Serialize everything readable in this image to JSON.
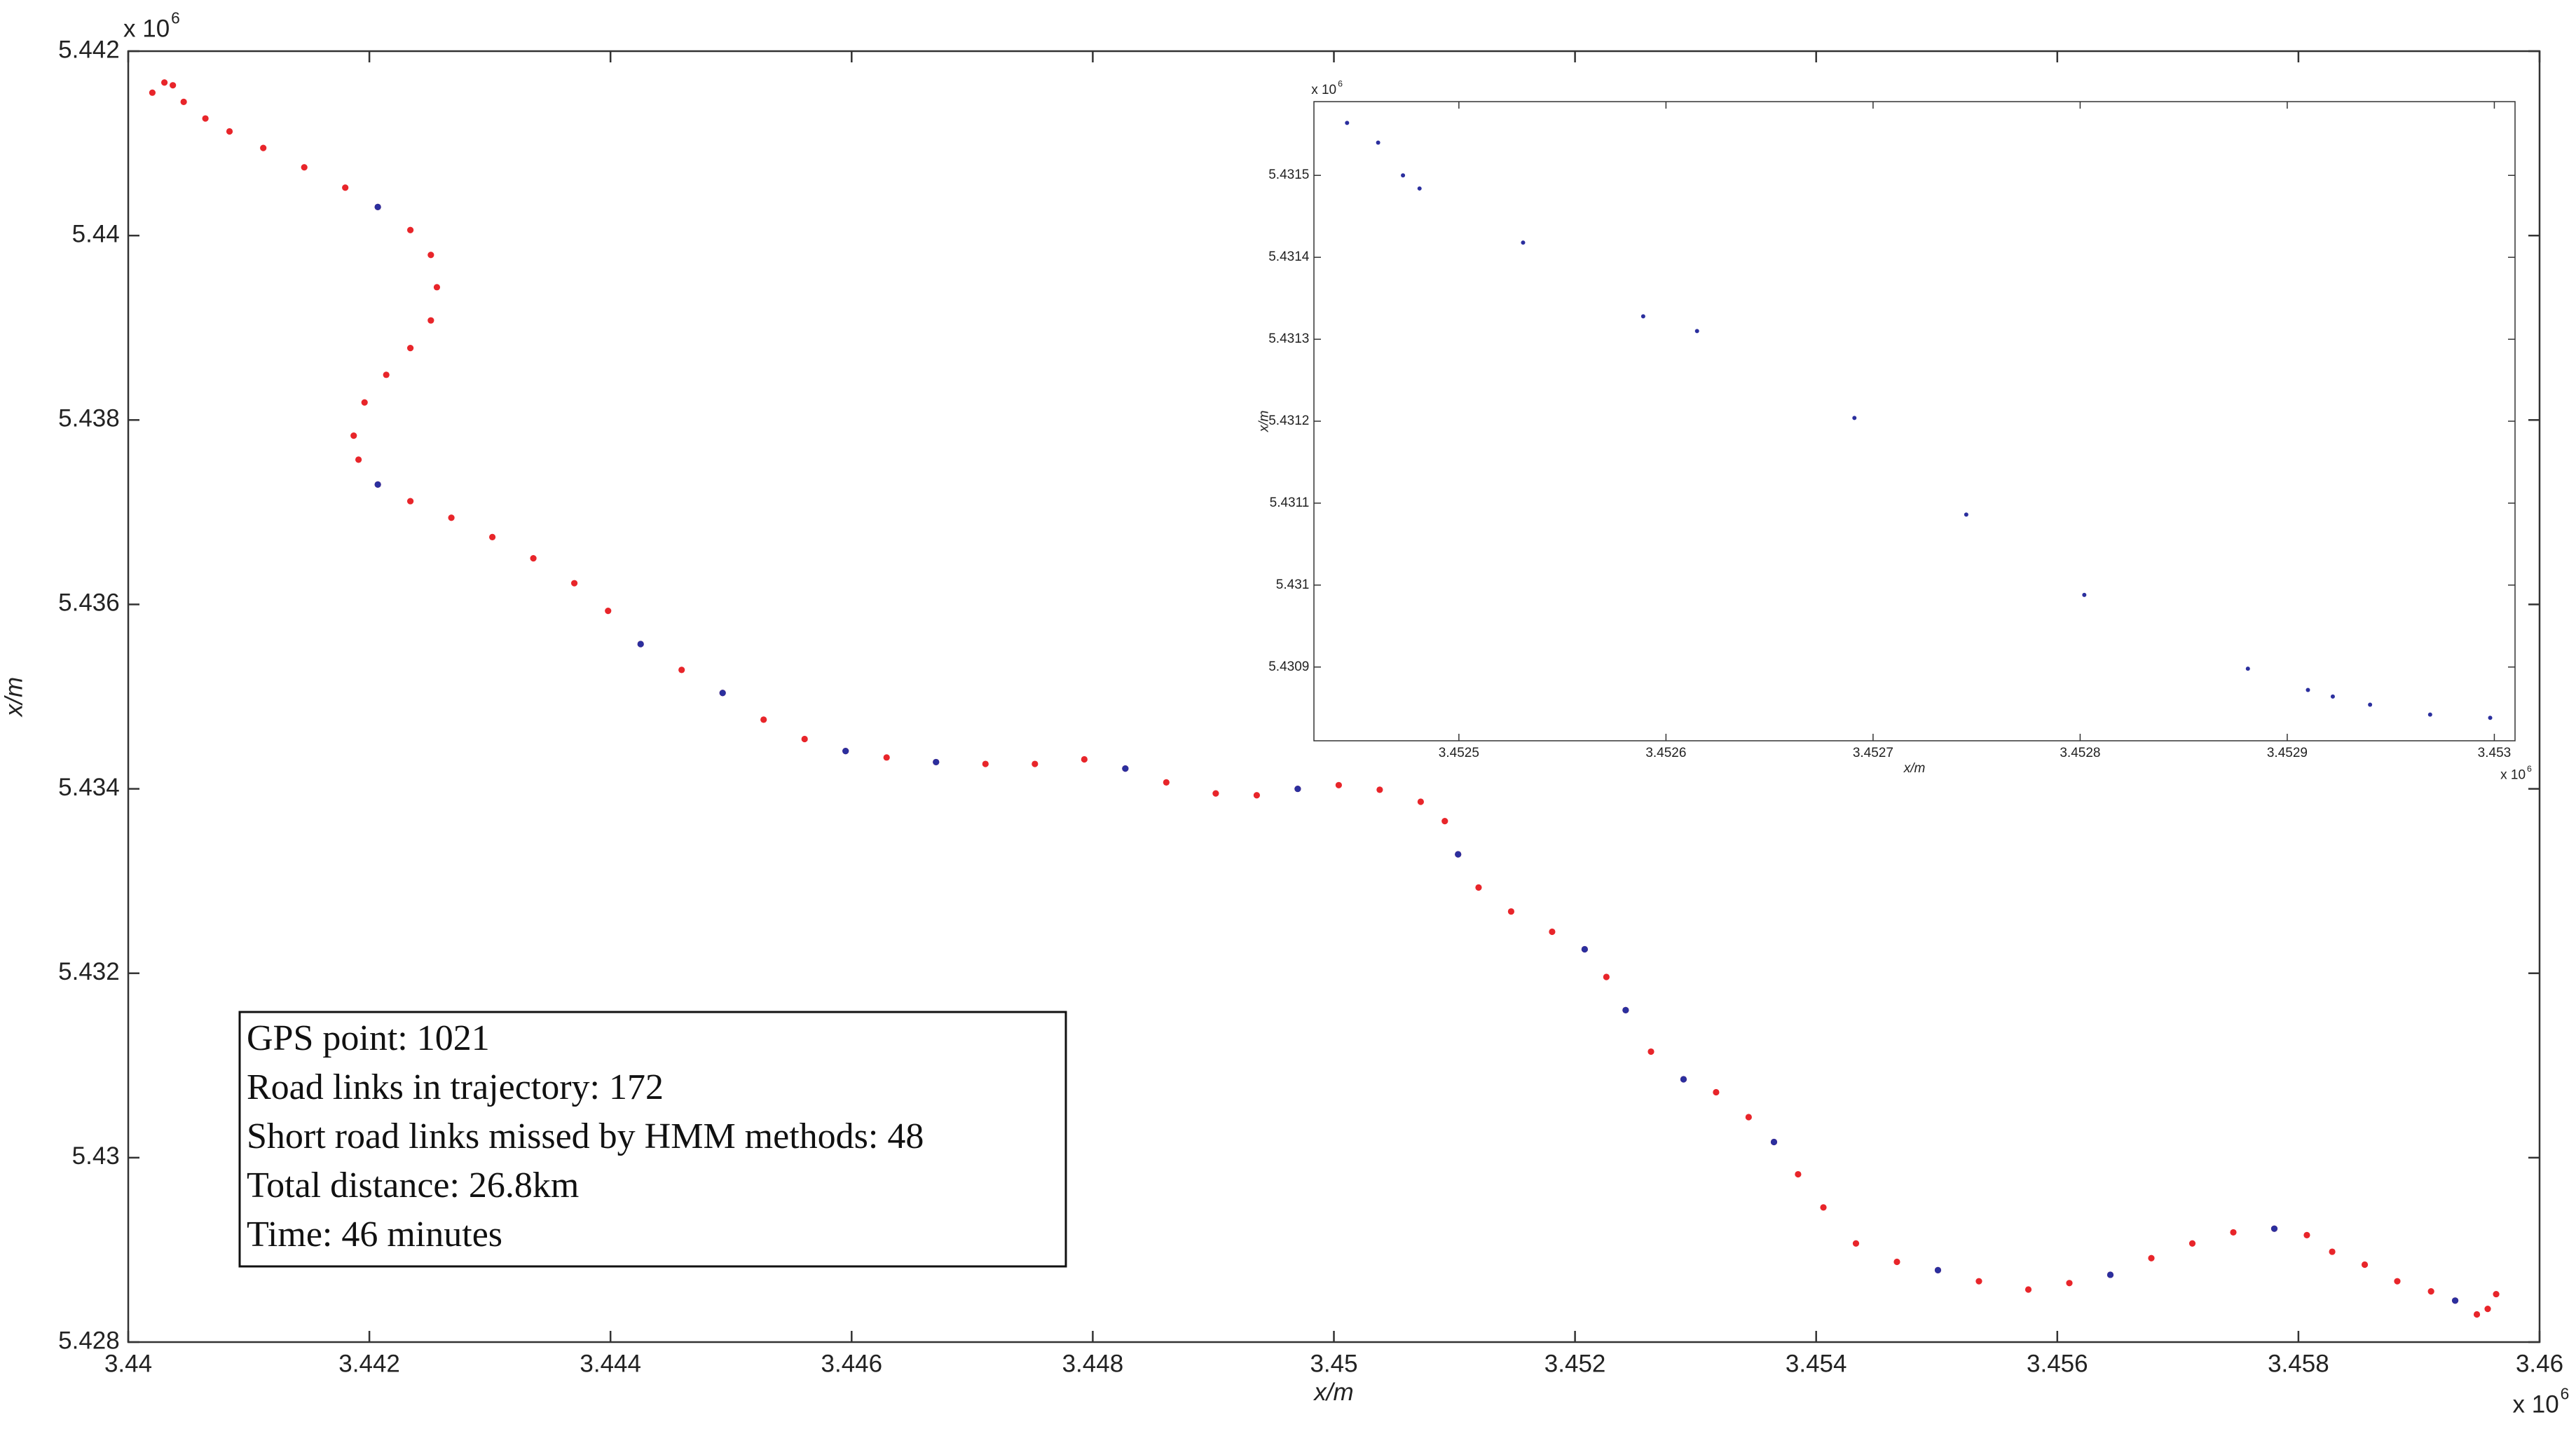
{
  "chart_data": [
    {
      "type": "scatter",
      "xlabel": "x/m",
      "ylabel": "x/m",
      "x_multiplier": {
        "base": "x 10",
        "exponent": "6"
      },
      "y_multiplier": {
        "base": "x 10",
        "exponent": "6"
      },
      "xlim": [
        3.44,
        3.46
      ],
      "ylim": [
        5.428,
        5.442
      ],
      "xticks": [
        3.44,
        3.442,
        3.444,
        3.446,
        3.448,
        3.45,
        3.452,
        3.454,
        3.456,
        3.458,
        3.46
      ],
      "yticks": [
        5.428,
        5.43,
        5.432,
        5.434,
        5.436,
        5.438,
        5.44,
        5.442
      ],
      "annotations": [
        "GPS point: 1021",
        "Road links in trajectory: 172",
        "Short road links missed by HMM methods: 48",
        "Total distance: 26.8km",
        "Time: 46 minutes"
      ],
      "series": [
        {
          "color": "#e8252a",
          "x": [
            3.4402,
            3.4403,
            3.44037,
            3.44046,
            3.44064,
            3.44084,
            3.44112,
            3.44146,
            3.4418,
            3.44207,
            3.44234,
            3.44251,
            3.44256,
            3.44251,
            3.44234,
            3.44214,
            3.44196,
            3.44187,
            3.44191,
            3.44207,
            3.44234,
            3.44268,
            3.44302,
            3.44336,
            3.4437,
            3.44398,
            3.44425,
            3.44459,
            3.44493,
            3.44527,
            3.44561,
            3.44595,
            3.44629,
            3.4467,
            3.44711,
            3.44752,
            3.44793,
            3.44827,
            3.44861,
            3.44902,
            3.44936,
            3.4497,
            3.45004,
            3.45038,
            3.45072,
            3.45092,
            3.45103,
            3.4512,
            3.45147,
            3.45181,
            3.45208,
            3.45226,
            3.45242,
            3.45263,
            3.4529,
            3.45317,
            3.45344,
            3.45365,
            3.45385,
            3.45406,
            3.45433,
            3.45467,
            3.45501,
            3.45535,
            3.45576,
            3.4561,
            3.45644,
            3.45678,
            3.45712,
            3.45746,
            3.4578,
            3.45807,
            3.45828,
            3.45855,
            3.45882,
            3.4591,
            3.4593,
            3.45948,
            3.45957,
            3.45964
          ],
          "y": [
            5.44155,
            5.44166,
            5.44163,
            5.44145,
            5.44127,
            5.44113,
            5.44095,
            5.44074,
            5.44052,
            5.44031,
            5.44006,
            5.43979,
            5.43944,
            5.43908,
            5.43878,
            5.43849,
            5.43819,
            5.43783,
            5.43757,
            5.4373,
            5.43712,
            5.43694,
            5.43673,
            5.4365,
            5.43623,
            5.43593,
            5.43557,
            5.43529,
            5.43504,
            5.43475,
            5.43454,
            5.43441,
            5.43434,
            5.43429,
            5.43427,
            5.43427,
            5.43432,
            5.43422,
            5.43407,
            5.43395,
            5.43393,
            5.434,
            5.43404,
            5.43399,
            5.43386,
            5.43365,
            5.43329,
            5.43293,
            5.43267,
            5.43245,
            5.43226,
            5.43196,
            5.4316,
            5.43115,
            5.43085,
            5.43071,
            5.43044,
            5.43017,
            5.42982,
            5.42946,
            5.42907,
            5.42887,
            5.42878,
            5.42866,
            5.42857,
            5.42864,
            5.42873,
            5.42891,
            5.42907,
            5.42919,
            5.42923,
            5.42916,
            5.42898,
            5.42884,
            5.42866,
            5.42855,
            5.42845,
            5.4283,
            5.42836,
            5.42852
          ]
        },
        {
          "color": "#2b2f9e",
          "x": [
            3.44207,
            3.44207,
            3.44425,
            3.44493,
            3.44595,
            3.4467,
            3.44827,
            3.4497,
            3.45103,
            3.45208,
            3.45242,
            3.4529,
            3.45365,
            3.45501,
            3.45644,
            3.4578,
            3.4593
          ],
          "y": [
            5.44031,
            5.4373,
            5.43557,
            5.43504,
            5.43441,
            5.43429,
            5.43422,
            5.434,
            5.43329,
            5.43226,
            5.4316,
            5.43085,
            5.43017,
            5.42878,
            5.42873,
            5.42923,
            5.42845
          ]
        }
      ]
    },
    {
      "type": "scatter",
      "xlabel": "x/m",
      "ylabel": "x/m",
      "x_multiplier": {
        "base": "x 10",
        "exponent": "6"
      },
      "y_multiplier": {
        "base": "x 10",
        "exponent": "6"
      },
      "xlim": [
        3.45243,
        3.45301
      ],
      "ylim": [
        5.43081,
        5.43159
      ],
      "xticks": [
        3.4525,
        3.4526,
        3.4527,
        3.4528,
        3.4529,
        3.453
      ],
      "yticks": [
        5.4309,
        5.431,
        5.4311,
        5.4312,
        5.4313,
        5.4314,
        5.4315
      ],
      "series": [
        {
          "color": "#2b2f9e",
          "x": [
            3.452446,
            3.452461,
            3.452473,
            3.452481,
            3.452531,
            3.452589,
            3.452615,
            3.452691,
            3.452745,
            3.452802,
            3.452881,
            3.45291,
            3.452922,
            3.45294,
            3.452969,
            3.452998
          ],
          "y": [
            5.431564,
            5.43154,
            5.4315,
            5.431484,
            5.431418,
            5.431328,
            5.43131,
            5.431204,
            5.431086,
            5.430988,
            5.430898,
            5.430872,
            5.430864,
            5.430854,
            5.430842,
            5.430838
          ]
        }
      ]
    }
  ]
}
